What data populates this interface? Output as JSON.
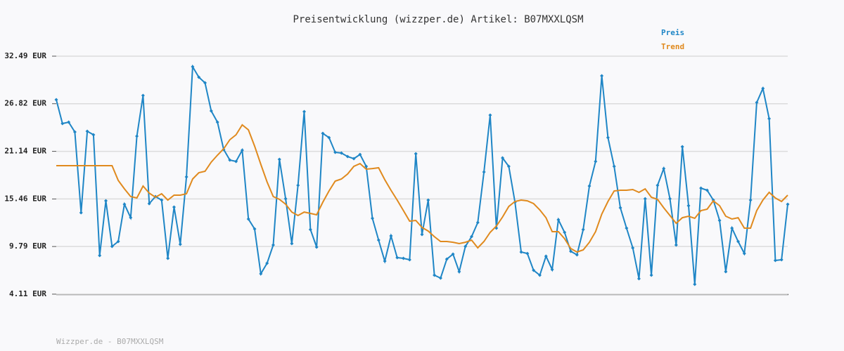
{
  "chart_data": {
    "type": "line",
    "title": "Preisentwicklung (wizzper.de) Artikel: B07MXXLQSM",
    "footer": "Wizzper.de - B07MXXLQSM",
    "ylim": [
      4.11,
      32.49
    ],
    "yticks": [
      {
        "value": 4.11,
        "label": "4.11 EUR"
      },
      {
        "value": 9.79,
        "label": "9.79 EUR"
      },
      {
        "value": 15.46,
        "label": "15.46 EUR"
      },
      {
        "value": 21.14,
        "label": "21.14 EUR"
      },
      {
        "value": 26.82,
        "label": "26.82 EUR"
      },
      {
        "value": 32.49,
        "label": "32.49 EUR"
      }
    ],
    "grid": true,
    "legend": "top-right",
    "series": [
      {
        "name": "Preis",
        "color": "#1f86c6",
        "markers": true,
        "values": [
          27.3,
          24.45,
          24.62,
          23.45,
          13.82,
          23.53,
          23.11,
          8.71,
          15.24,
          9.8,
          10.39,
          14.83,
          13.23,
          22.95,
          27.8,
          14.91,
          15.75,
          15.33,
          8.38,
          14.49,
          10.05,
          18.09,
          31.23,
          29.98,
          29.31,
          25.96,
          24.62,
          21.36,
          20.1,
          19.93,
          21.27,
          13.07,
          11.89,
          6.54,
          7.79,
          9.97,
          20.18,
          15.49,
          10.14,
          17.09,
          25.88,
          11.81,
          9.72,
          23.28,
          22.78,
          21.02,
          20.94,
          20.52,
          20.27,
          20.77,
          19.35,
          13.15,
          10.56,
          8.04,
          11.06,
          8.46,
          8.38,
          8.21,
          20.85,
          11.23,
          15.33,
          6.37,
          6.03,
          8.29,
          8.88,
          6.79,
          9.8,
          10.97,
          12.65,
          18.68,
          25.46,
          11.98,
          20.35,
          19.35,
          15.08,
          9.13,
          8.96,
          6.96,
          6.37,
          8.63,
          7.04,
          12.98,
          11.48,
          9.22,
          8.8,
          11.81,
          17.0,
          19.93,
          30.15,
          22.78,
          19.35,
          14.41,
          11.98,
          9.63,
          5.95,
          15.49,
          6.37,
          17.09,
          19.09,
          15.49,
          9.97,
          21.69,
          14.66,
          5.28,
          16.75,
          16.5,
          15.33,
          12.9,
          6.79,
          11.98,
          10.39,
          8.96,
          15.33,
          26.96,
          28.64,
          25.04,
          8.13,
          8.21,
          14.83
        ]
      },
      {
        "name": "Trend",
        "color": "#e08a1e",
        "markers": false,
        "values": [
          19.43,
          19.43,
          19.43,
          19.43,
          19.43,
          19.43,
          19.43,
          19.43,
          19.43,
          19.43,
          17.67,
          16.67,
          15.75,
          15.58,
          17.0,
          16.16,
          15.66,
          16.08,
          15.33,
          15.91,
          15.91,
          16.08,
          17.84,
          18.59,
          18.76,
          19.85,
          20.69,
          21.44,
          22.53,
          23.11,
          24.29,
          23.7,
          21.77,
          19.6,
          17.5,
          15.75,
          15.41,
          14.83,
          13.9,
          13.49,
          13.9,
          13.74,
          13.57,
          15.08,
          16.42,
          17.59,
          17.84,
          18.43,
          19.35,
          19.68,
          19.01,
          19.09,
          19.18,
          17.76,
          16.5,
          15.33,
          14.07,
          12.82,
          12.9,
          12.06,
          11.64,
          10.97,
          10.39,
          10.39,
          10.3,
          10.14,
          10.3,
          10.56,
          9.63,
          10.39,
          11.48,
          12.23,
          13.32,
          14.57,
          15.16,
          15.33,
          15.24,
          14.91,
          14.16,
          13.23,
          11.56,
          11.56,
          10.72,
          9.55,
          9.13,
          9.38,
          10.3,
          11.56,
          13.65,
          15.16,
          16.42,
          16.5,
          16.5,
          16.58,
          16.25,
          16.67,
          15.66,
          15.41,
          14.41,
          13.49,
          12.56,
          13.23,
          13.4,
          13.15,
          14.07,
          14.24,
          15.24,
          14.66,
          13.4,
          13.07,
          13.23,
          11.98,
          11.98,
          14.07,
          15.33,
          16.25,
          15.58,
          15.16,
          15.91
        ]
      }
    ]
  }
}
